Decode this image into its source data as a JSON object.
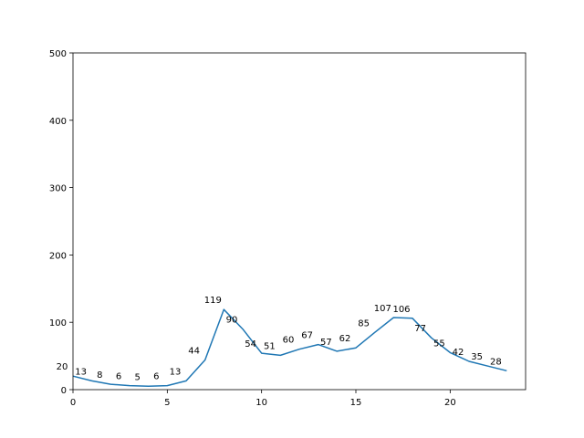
{
  "chart_data": {
    "type": "line",
    "title": "",
    "xlabel": "",
    "ylabel": "",
    "xlim": [
      0,
      24
    ],
    "ylim": [
      0,
      500
    ],
    "x_ticks": [
      0,
      5,
      10,
      15,
      20
    ],
    "y_ticks": [
      0,
      100,
      200,
      300,
      400,
      500
    ],
    "x_tick_labels": [
      "0",
      "5",
      "10",
      "15",
      "20"
    ],
    "y_tick_labels": [
      "0",
      "100",
      "200",
      "300",
      "400",
      "500"
    ],
    "grid": false,
    "legend": "none",
    "series": [
      {
        "color": "#1f77b4",
        "x": [
          0,
          1,
          2,
          3,
          4,
          5,
          6,
          7,
          8,
          9,
          10,
          11,
          12,
          13,
          14,
          15,
          16,
          17,
          18,
          19,
          20,
          21,
          22,
          23
        ],
        "values": [
          20,
          13,
          8,
          6,
          5,
          6,
          13,
          44,
          119,
          90,
          54,
          51,
          60,
          67,
          57,
          62,
          85,
          107,
          106,
          77,
          55,
          42,
          35,
          28
        ],
        "data_labels": [
          "20",
          "13",
          "8",
          "6",
          "5",
          "6",
          "13",
          "44",
          "119",
          "90",
          "54",
          "51",
          "60",
          "67",
          "57",
          "62",
          "85",
          "107",
          "106",
          "77",
          "55",
          "42",
          "35",
          "28"
        ]
      }
    ]
  }
}
